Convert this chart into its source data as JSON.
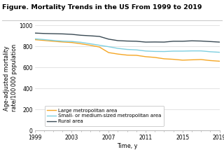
{
  "title": "Figure. Mortality Trends in the US From 1999 to 2019",
  "xlabel": "Time, y",
  "ylabel": "Age-adjusted mortality\nrate/100 000 population",
  "xlim": [
    1999,
    2019
  ],
  "ylim": [
    0,
    1000
  ],
  "yticks": [
    0,
    200,
    400,
    600,
    800,
    1000
  ],
  "xticks": [
    1999,
    2003,
    2007,
    2011,
    2015,
    2019
  ],
  "years": [
    1999,
    2000,
    2001,
    2002,
    2003,
    2004,
    2005,
    2006,
    2007,
    2008,
    2009,
    2010,
    2011,
    2012,
    2013,
    2014,
    2015,
    2016,
    2017,
    2018,
    2019
  ],
  "large_metro": [
    865,
    858,
    850,
    843,
    838,
    826,
    812,
    795,
    742,
    728,
    718,
    716,
    703,
    696,
    683,
    678,
    670,
    673,
    676,
    666,
    660
  ],
  "small_metro": [
    873,
    866,
    858,
    851,
    848,
    840,
    826,
    812,
    798,
    782,
    772,
    768,
    757,
    753,
    752,
    756,
    756,
    758,
    758,
    750,
    745
  ],
  "rural": [
    928,
    924,
    922,
    920,
    916,
    907,
    902,
    896,
    870,
    856,
    852,
    850,
    842,
    843,
    842,
    850,
    850,
    854,
    852,
    847,
    842
  ],
  "color_large": "#f5a623",
  "color_small": "#7ecfe0",
  "color_rural": "#3a4a54",
  "legend_labels": [
    "Large metropolitan area",
    "Small- or medium-sized metropolitan area",
    "Rural area"
  ],
  "background_color": "#ffffff",
  "title_fontsize": 6.8,
  "axis_fontsize": 5.8,
  "tick_fontsize": 5.5,
  "legend_fontsize": 5.0,
  "line_width": 1.0
}
